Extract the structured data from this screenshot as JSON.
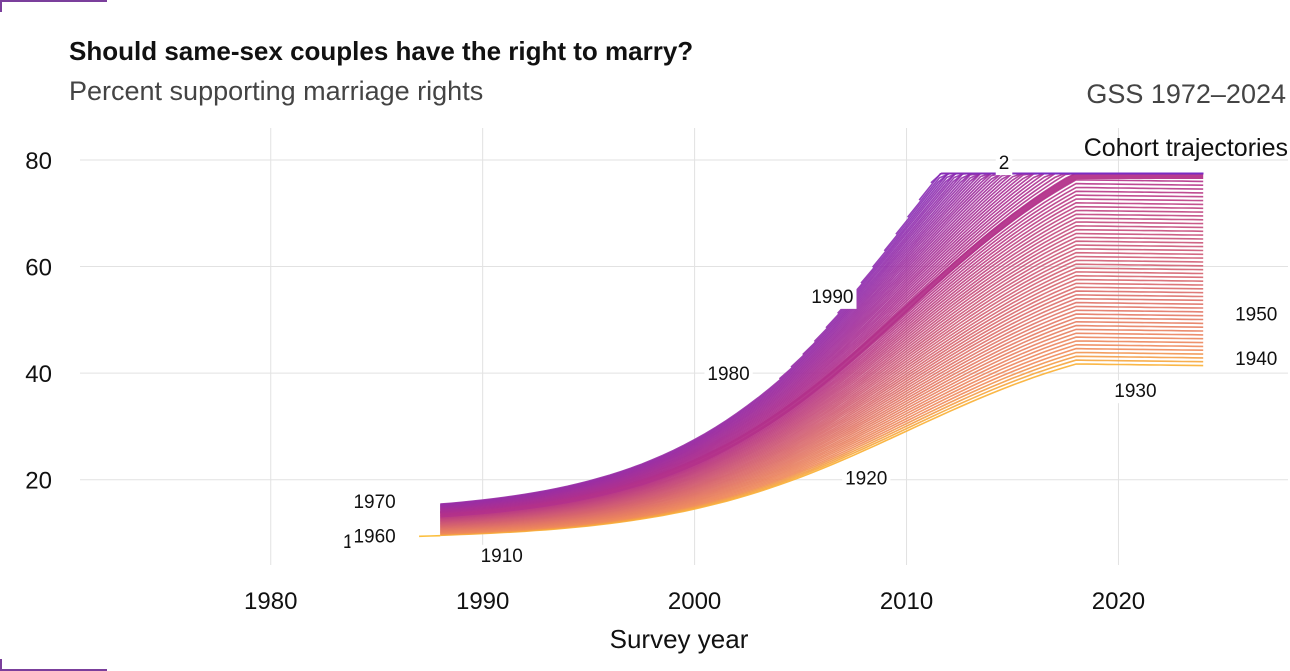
{
  "header": {
    "title": "Should same-sex couples have the right to marry?",
    "subtitle": "Percent supporting marriage rights",
    "caption": "GSS 1972–2024"
  },
  "chart_data": {
    "type": "line",
    "xlabel": "Survey year",
    "ylabel": "",
    "xlim": [
      1971,
      2028
    ],
    "ylim": [
      4,
      86
    ],
    "x_ticks": [
      "1980",
      "1990",
      "2000",
      "2010",
      "2020"
    ],
    "y_ticks": [
      "20",
      "40",
      "60",
      "80"
    ],
    "x_tick_values": [
      1980,
      1990,
      2000,
      2010,
      2020
    ],
    "y_tick_values": [
      20,
      40,
      60,
      80
    ],
    "grid": true,
    "legend": "none",
    "annotation": "Cohort trajectories",
    "cohort_range": [
      1900,
      2000
    ],
    "highlighted_cohort": 1950,
    "end_year": 2024,
    "colors": {
      "early": "#fbb829",
      "mid": "#ef8a5a",
      "center": "#b3318a",
      "late": "#7a2cc4"
    },
    "cohort_labels": [
      {
        "text": "1900",
        "cohort": 1900
      },
      {
        "text": "1910",
        "cohort": 1910
      },
      {
        "text": "1920",
        "cohort": 1920
      },
      {
        "text": "1930",
        "cohort": 1930
      },
      {
        "text": "1940",
        "cohort": 1940
      },
      {
        "text": "1950",
        "cohort": 1950
      },
      {
        "text": "1960",
        "cohort": 1960
      },
      {
        "text": "1970",
        "cohort": 1970
      },
      {
        "text": "1980",
        "cohort": 1980
      },
      {
        "text": "1990",
        "cohort": 1990
      },
      {
        "text": "2",
        "cohort": 2000
      }
    ]
  }
}
